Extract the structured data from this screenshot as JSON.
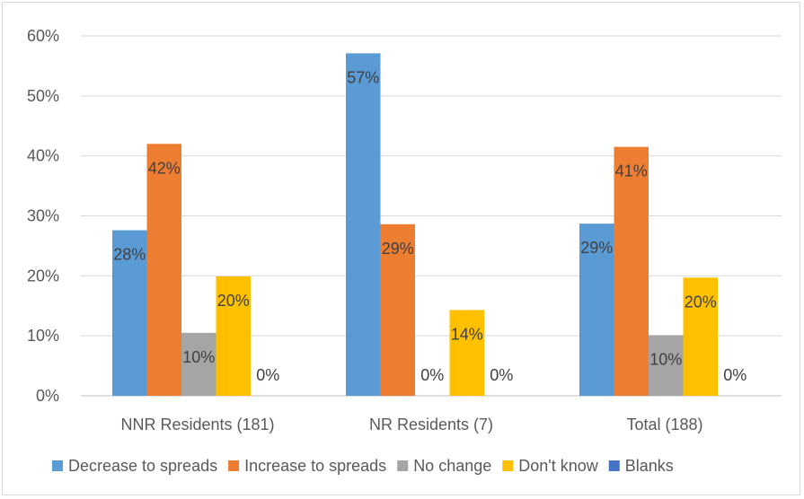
{
  "chart_data": {
    "type": "bar",
    "title": "",
    "xlabel": "",
    "ylabel": "",
    "ylim": [
      0,
      60
    ],
    "yticks": [
      "0%",
      "10%",
      "20%",
      "30%",
      "40%",
      "50%",
      "60%"
    ],
    "grid": true,
    "legend_position": "bottom",
    "categories": [
      "NNR Residents (181)",
      "NR Residents (7)",
      "Total (188)"
    ],
    "series": [
      {
        "name": "Decrease to spreads",
        "color": "#5b9bd5",
        "values": [
          27.6,
          57.1,
          28.7
        ],
        "labels": [
          "28%",
          "57%",
          "29%"
        ]
      },
      {
        "name": "Increase to spreads",
        "color": "#ed7d31",
        "values": [
          42.0,
          28.6,
          41.5
        ],
        "labels": [
          "42%",
          "29%",
          "41%"
        ]
      },
      {
        "name": "No change",
        "color": "#a5a5a5",
        "values": [
          10.5,
          0,
          10.1
        ],
        "labels": [
          "10%",
          "0%",
          "10%"
        ]
      },
      {
        "name": "Don't know",
        "color": "#ffc000",
        "values": [
          19.9,
          14.3,
          19.7
        ],
        "labels": [
          "20%",
          "14%",
          "20%"
        ]
      },
      {
        "name": "Blanks",
        "color": "#4472c4",
        "values": [
          0,
          0,
          0
        ],
        "labels": [
          "0%",
          "0%",
          "0%"
        ]
      }
    ]
  }
}
